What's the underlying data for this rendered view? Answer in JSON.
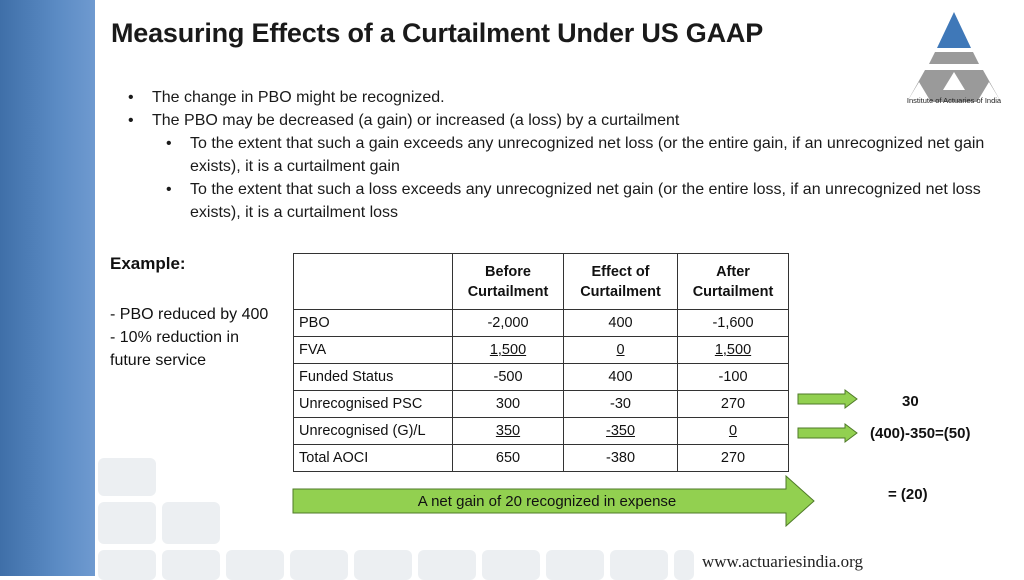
{
  "slide": {
    "title": "Measuring Effects of a Curtailment Under US GAAP",
    "logo_text": "Institute of Actuaries of India",
    "footer": "www.actuariesindia.org",
    "colors": {
      "sidebar": "#4a7ab5",
      "arrow_fill": "#92d050",
      "arrow_stroke": "#4f7a28"
    }
  },
  "bullets": [
    {
      "level": 1,
      "text": "The change in PBO might be recognized."
    },
    {
      "level": 1,
      "text": "The PBO may be decreased (a gain) or increased (a loss) by a curtailment"
    },
    {
      "level": 2,
      "text": "To the extent that such a gain exceeds any unrecognized net loss (or the entire gain, if an unrecognized net gain exists), it is a curtailment gain"
    },
    {
      "level": 2,
      "text": "To the extent that such a loss exceeds any unrecognized net gain (or the entire loss, if an unrecognized net loss exists), it is a curtailment loss"
    }
  ],
  "example": {
    "label": "Example:",
    "notes": [
      "- PBO reduced by 400",
      "- 10% reduction in future service"
    ]
  },
  "table": {
    "headers": [
      "",
      "Before Curtailment",
      "Effect of Curtailment",
      "After Curtailment"
    ],
    "rows": [
      {
        "label": "PBO",
        "values": [
          "-2,000",
          "400",
          "-1,600"
        ]
      },
      {
        "label": "FVA",
        "values": [
          "1,500",
          "0",
          "1,500"
        ]
      },
      {
        "label": "Funded Status",
        "values": [
          "-500",
          "400",
          "-100"
        ]
      },
      {
        "label": "Unrecognised PSC",
        "values": [
          "300",
          "-30",
          "270"
        ]
      },
      {
        "label": "Unrecognised (G)/L",
        "values": [
          "350",
          "-350",
          "0"
        ]
      },
      {
        "label": "Total AOCI",
        "values": [
          "650",
          "-380",
          "270"
        ]
      }
    ]
  },
  "annotations": {
    "psc_note": "30",
    "gl_note": "(400)-350=(50)",
    "net_note": "= (20)",
    "banner": "A net gain of 20 recognized in expense"
  }
}
